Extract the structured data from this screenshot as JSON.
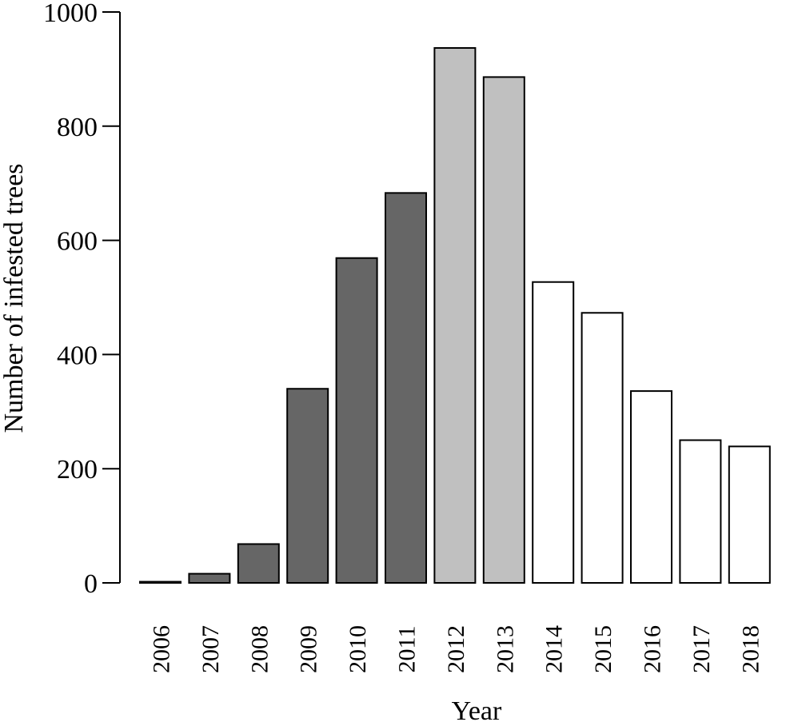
{
  "chart_data": {
    "type": "bar",
    "title": "",
    "xlabel": "Year",
    "ylabel": "Number of infested trees",
    "ylim": [
      0,
      1000
    ],
    "yticks": [
      0,
      200,
      400,
      600,
      800,
      1000
    ],
    "categories": [
      "2006",
      "2007",
      "2008",
      "2009",
      "2010",
      "2011",
      "2012",
      "2013",
      "2014",
      "2015",
      "2016",
      "2017",
      "2018"
    ],
    "values": [
      2,
      16,
      68,
      340,
      569,
      683,
      937,
      886,
      527,
      473,
      336,
      250,
      239
    ],
    "bar_colors": [
      "#000000",
      "#666666",
      "#666666",
      "#666666",
      "#666666",
      "#666666",
      "#c0c0c0",
      "#c0c0c0",
      "#ffffff",
      "#ffffff",
      "#ffffff",
      "#ffffff",
      "#ffffff"
    ],
    "grid": false,
    "legend": "none"
  }
}
